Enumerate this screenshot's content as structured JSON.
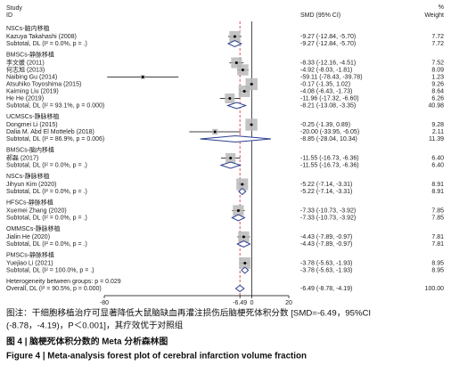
{
  "chart_data": {
    "type": "forest",
    "header": {
      "study": "Study",
      "id": "ID",
      "effect": "SMD (95% CI)",
      "percent": "%",
      "weight": "Weight"
    },
    "xlim": [
      -80,
      20
    ],
    "xticks": [
      -80,
      -6.49,
      0,
      20
    ],
    "square_color": "#b9b9b9",
    "diamond_color": "#2b3f8f",
    "reference_line_color": "#d62728",
    "groups": [
      {
        "name": "NSCs-脑内移植",
        "studies": [
          {
            "label": "Kazuya Takahashi (2008)",
            "smd": -9.27,
            "ci": [
              -12.84,
              -5.7
            ],
            "weight": 7.72,
            "effect_label": "-9.27 (-12.84, -5.70)",
            "weight_label": "7.72"
          }
        ],
        "subtotal": {
          "label": "Subtotal, DL (I² = 0.0%, p = .)",
          "smd": -9.27,
          "ci": [
            -12.84,
            -5.7
          ],
          "weight": 7.72,
          "effect_label": "-9.27 (-12.84, -5.70)",
          "weight_label": "7.72"
        }
      },
      {
        "name": "BMSCs-静脉移植",
        "studies": [
          {
            "label": "李文媛 (2011)",
            "smd": -8.33,
            "ci": [
              -12.16,
              -4.51
            ],
            "weight": 7.52,
            "effect_label": "-8.33 (-12.16, -4.51)",
            "weight_label": "7.52"
          },
          {
            "label": "何志旭 (2013)",
            "smd": -4.92,
            "ci": [
              -8.03,
              -1.81
            ],
            "weight": 8.09,
            "effect_label": "-4.92 (-8.03, -1.81)",
            "weight_label": "8.09"
          },
          {
            "label": "Naibing Gu (2014)",
            "smd": -59.11,
            "ci": [
              -78.43,
              -39.78
            ],
            "weight": 1.23,
            "effect_label": "-59.11 (-78.43, -39.78)",
            "weight_label": "1.23"
          },
          {
            "label": "Atsuhiko Toyoshima (2015)",
            "smd": -0.17,
            "ci": [
              -1.35,
              1.02
            ],
            "weight": 9.26,
            "effect_label": "-0.17 (-1.35, 1.02)",
            "weight_label": "9.26"
          },
          {
            "label": "Kaiming Liu (2019)",
            "smd": -4.08,
            "ci": [
              -6.43,
              -1.73
            ],
            "weight": 8.64,
            "effect_label": "-4.08 (-6.43, -1.73)",
            "weight_label": "8.64"
          },
          {
            "label": "He He (2019)",
            "smd": -11.96,
            "ci": [
              -17.32,
              -6.6
            ],
            "weight": 6.26,
            "effect_label": "-11.96 (-17.32, -6.60)",
            "weight_label": "6.26"
          }
        ],
        "subtotal": {
          "label": "Subtotal, DL (I² = 93.1%, p = 0.000)",
          "smd": -8.21,
          "ci": [
            -13.08,
            -3.35
          ],
          "weight": 40.98,
          "effect_label": "-8.21 (-13.08, -3.35)",
          "weight_label": "40.98"
        }
      },
      {
        "name": "UCMSCs-静脉移植",
        "studies": [
          {
            "label": "Dongmei Li (2015)",
            "smd": -0.25,
            "ci": [
              -1.39,
              0.89
            ],
            "weight": 9.28,
            "effect_label": "-0.25 (-1.39, 0.89)",
            "weight_label": "9.28"
          },
          {
            "label": "Dalia M. Abd El Motteleb (2018)",
            "smd": -20.0,
            "ci": [
              -33.95,
              -6.05
            ],
            "weight": 2.11,
            "effect_label": "-20.00 (-33.95, -6.05)",
            "weight_label": "2.11"
          }
        ],
        "subtotal": {
          "label": "Subtotal, DL (I² = 86.9%, p = 0.006)",
          "smd": -8.85,
          "ci": [
            -28.04,
            10.34
          ],
          "weight": 11.39,
          "effect_label": "-8.85 (-28.04, 10.34)",
          "weight_label": "11.39"
        }
      },
      {
        "name": "BMSCs-脑内移植",
        "studies": [
          {
            "label": "郝磊 (2017)",
            "smd": -11.55,
            "ci": [
              -16.73,
              -6.36
            ],
            "weight": 6.4,
            "effect_label": "-11.55 (-16.73, -6.36)",
            "weight_label": "6.40"
          }
        ],
        "subtotal": {
          "label": "Subtotal, DL (I² = 0.0%, p = .)",
          "smd": -11.55,
          "ci": [
            -16.73,
            -6.36
          ],
          "weight": 6.4,
          "effect_label": "-11.55 (-16.73, -6.36)",
          "weight_label": "6.40"
        }
      },
      {
        "name": "NSCs-静脉移植",
        "studies": [
          {
            "label": "Jihyun Kim (2020)",
            "smd": -5.22,
            "ci": [
              -7.14,
              -3.31
            ],
            "weight": 8.91,
            "effect_label": "-5.22 (-7.14, -3.31)",
            "weight_label": "8.91"
          }
        ],
        "subtotal": {
          "label": "Subtotal, DL (I² = 0.0%, p = .)",
          "smd": -5.22,
          "ci": [
            -7.14,
            -3.31
          ],
          "weight": 8.91,
          "effect_label": "-5.22 (-7.14, -3.31)",
          "weight_label": "8.91"
        }
      },
      {
        "name": "HFSCs-静脉移植",
        "studies": [
          {
            "label": "Xuemei Zhang (2020)",
            "smd": -7.33,
            "ci": [
              -10.73,
              -3.92
            ],
            "weight": 7.85,
            "effect_label": "-7.33 (-10.73, -3.92)",
            "weight_label": "7.85"
          }
        ],
        "subtotal": {
          "label": "Subtotal, DL (I² = 0.0%, p = .)",
          "smd": -7.33,
          "ci": [
            -10.73,
            -3.92
          ],
          "weight": 7.85,
          "effect_label": "-7.33 (-10.73, -3.92)",
          "weight_label": "7.85"
        }
      },
      {
        "name": "OMMSCs-静脉移植",
        "studies": [
          {
            "label": "Jialin He (2020)",
            "smd": -4.43,
            "ci": [
              -7.89,
              -0.97
            ],
            "weight": 7.81,
            "effect_label": "-4.43 (-7.89, -0.97)",
            "weight_label": "7.81"
          }
        ],
        "subtotal": {
          "label": "Subtotal, DL (I² = 0.0%, p = .)",
          "smd": -4.43,
          "ci": [
            -7.89,
            -0.97
          ],
          "weight": 7.81,
          "effect_label": "-4.43 (-7.89, -0.97)",
          "weight_label": "7.81"
        }
      },
      {
        "name": "PMSCs-静脉移植",
        "studies": [
          {
            "label": "Yuejiao Li (2021)",
            "smd": -3.78,
            "ci": [
              -5.63,
              -1.93
            ],
            "weight": 8.95,
            "effect_label": "-3.78 (-5.63, -1.93)",
            "weight_label": "8.95"
          }
        ],
        "subtotal": {
          "label": "Subtotal, DL (I² = 100.0%, p = .)",
          "smd": -3.78,
          "ci": [
            -5.63,
            -1.93
          ],
          "weight": 8.95,
          "effect_label": "-3.78 (-5.63, -1.93)",
          "weight_label": "8.95"
        }
      }
    ],
    "heterogeneity": "Heterogeneity between groups: p = 0.029",
    "overall": {
      "label": "Overall, DL (I² = 90.5%, p = 0.000)",
      "smd": -6.49,
      "ci": [
        -8.78,
        -4.19
      ],
      "weight": 100.0,
      "effect_label": "-6.49 (-8.78, -4.19)",
      "weight_label": "100.00"
    }
  },
  "caption": {
    "note_line1": "图注：干细胞移植治疗可显著降低大鼠脑缺血再灌注损伤后脑梗死体积分数 [SMD=-6.49，95%CI",
    "note_line2": "(-8.78，-4.19)，P＜0.001]，其疗效优于对照组",
    "title_cn": "图 4 | 脑梗死体积分数的 Meta 分析森林图",
    "title_en": "Figure 4 | Meta-analysis forest plot of cerebral infarction volume fraction"
  }
}
